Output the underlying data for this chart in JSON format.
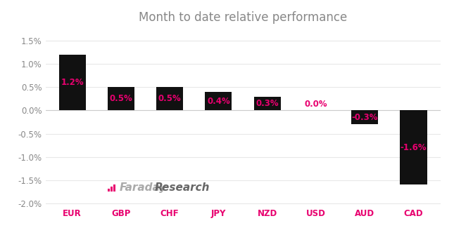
{
  "title": "Month to date relative performance",
  "categories": [
    "EUR",
    "GBP",
    "CHF",
    "JPY",
    "NZD",
    "USD",
    "AUD",
    "CAD"
  ],
  "values": [
    1.2,
    0.5,
    0.5,
    0.4,
    0.3,
    0.0,
    -0.3,
    -1.6
  ],
  "labels": [
    "1.2%",
    "0.5%",
    "0.5%",
    "0.4%",
    "0.3%",
    "0.0%",
    "-0.3%",
    "-1.6%"
  ],
  "bar_color": "#111111",
  "label_color": "#e8006f",
  "tick_label_color": "#e8006f",
  "title_color": "#888888",
  "axis_label_color": "#888888",
  "background_color": "#ffffff",
  "ylim": [
    -2.05,
    1.75
  ],
  "yticks": [
    -2.0,
    -1.5,
    -1.0,
    -0.5,
    0.0,
    0.5,
    1.0,
    1.5
  ],
  "ytick_labels": [
    "-2.0%",
    "-1.5%",
    "-1.0%",
    "-0.5%",
    "0.0%",
    "0.5%",
    "1.0%",
    "1.5%"
  ],
  "title_fontsize": 12,
  "label_fontsize": 8.5,
  "tick_fontsize": 8.5,
  "bar_width": 0.55,
  "logo_faraday_color": "#aaaaaa",
  "logo_research_color": "#666666",
  "logo_icon_color": "#e8006f",
  "grid_color": "#e8e8e8",
  "spine_color": "#cccccc"
}
